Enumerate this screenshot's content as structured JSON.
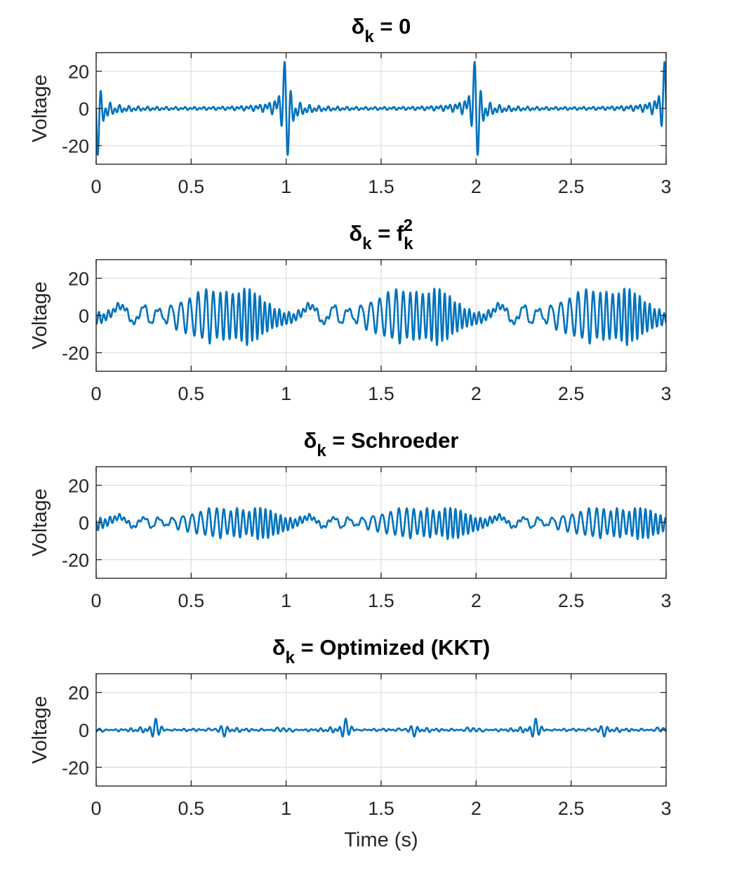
{
  "figure": {
    "xlabel": "Time (s)"
  },
  "chart_data": [
    {
      "type": "line",
      "title_base": "δ",
      "title_sub": "k",
      "title_rest": " = 0",
      "ylabel": "Voltage",
      "xlim": [
        0,
        3
      ],
      "ylim": [
        -30,
        30
      ],
      "xticks": [
        0,
        0.5,
        1,
        1.5,
        2,
        2.5,
        3
      ],
      "xtick_labels": [
        "0",
        "0.5",
        "1",
        "1.5",
        "2",
        "2.5",
        "3"
      ],
      "yticks": [
        20,
        0,
        -20
      ],
      "ytick_labels": [
        "20",
        "0",
        "-20"
      ],
      "grid": true,
      "color": "#0072BD",
      "series": [
        {
          "name": "delta_k = 0",
          "phase_mode": "zero",
          "period": 1,
          "amplitude": 25
        }
      ]
    },
    {
      "type": "line",
      "title_base": "δ",
      "title_sub": "k",
      "title_rest": " = f",
      "title_sub2": "k",
      "title_sup2": "2",
      "ylabel": "Voltage",
      "xlim": [
        0,
        3
      ],
      "ylim": [
        -30,
        30
      ],
      "xticks": [
        0,
        0.5,
        1,
        1.5,
        2,
        2.5,
        3
      ],
      "xtick_labels": [
        "0",
        "0.5",
        "1",
        "1.5",
        "2",
        "2.5",
        "3"
      ],
      "yticks": [
        20,
        0,
        -20
      ],
      "ytick_labels": [
        "20",
        "0",
        "-20"
      ],
      "grid": true,
      "color": "#0072BD",
      "series": [
        {
          "name": "delta_k = f_k^2",
          "phase_mode": "quadratic",
          "period": 1,
          "amplitude": 16
        }
      ]
    },
    {
      "type": "line",
      "title_base": "δ",
      "title_sub": "k",
      "title_rest": " = Schroeder",
      "ylabel": "Voltage",
      "xlim": [
        0,
        3
      ],
      "ylim": [
        -30,
        30
      ],
      "xticks": [
        0,
        0.5,
        1,
        1.5,
        2,
        2.5,
        3
      ],
      "xtick_labels": [
        "0",
        "0.5",
        "1",
        "1.5",
        "2",
        "2.5",
        "3"
      ],
      "yticks": [
        20,
        0,
        -20
      ],
      "ytick_labels": [
        "20",
        "0",
        "-20"
      ],
      "grid": true,
      "color": "#0072BD",
      "series": [
        {
          "name": "delta_k = Schroeder",
          "phase_mode": "schroeder",
          "period": 1,
          "amplitude": 9
        }
      ]
    },
    {
      "type": "line",
      "title_base": "δ",
      "title_sub": "k",
      "title_rest": " = Optimized (KKT)",
      "ylabel": "Voltage",
      "xlim": [
        0,
        3
      ],
      "ylim": [
        -30,
        30
      ],
      "xticks": [
        0,
        0.5,
        1,
        1.5,
        2,
        2.5,
        3
      ],
      "xtick_labels": [
        "0",
        "0.5",
        "1",
        "1.5",
        "2",
        "2.5",
        "3"
      ],
      "yticks": [
        20,
        0,
        -20
      ],
      "ytick_labels": [
        "20",
        "0",
        "-20"
      ],
      "grid": true,
      "color": "#0072BD",
      "series": [
        {
          "name": "delta_k = Optimized (KKT)",
          "phase_mode": "optimized",
          "period": 1,
          "amplitude": 6
        }
      ]
    }
  ]
}
